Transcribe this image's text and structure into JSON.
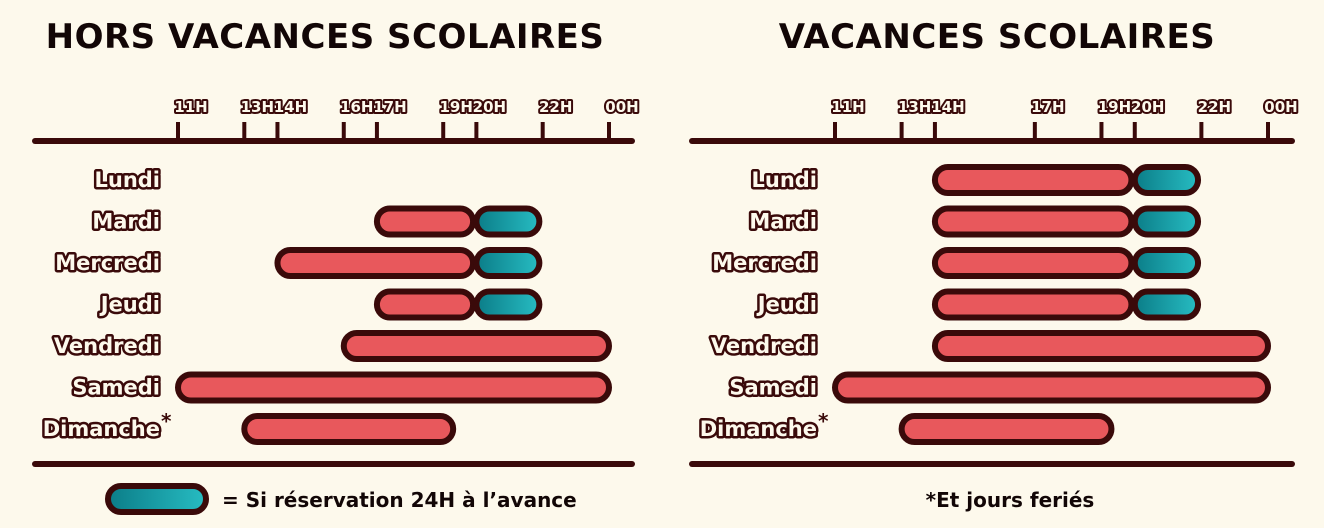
{
  "colors": {
    "outline": "#3a0a0a",
    "bar": "#e8585c",
    "reservation_bar_start": "#0b7d88",
    "reservation_bar_end": "#27bcc2",
    "background": "#fdf9ec"
  },
  "legend": {
    "label": "= Si réservation 24H à l’avance"
  },
  "footnote": "*Et jours feriés",
  "chart_data": [
    {
      "type": "bar",
      "orientation": "horizontal-range",
      "title": "HORS VACANCES SCOLAIRES",
      "x_unit": "hour",
      "xlim": [
        11,
        24
      ],
      "ticks": [
        {
          "value": 11,
          "label": "11H"
        },
        {
          "value": 13,
          "label": "13H"
        },
        {
          "value": 14,
          "label": "14H"
        },
        {
          "value": 16,
          "label": "16H"
        },
        {
          "value": 17,
          "label": "17H"
        },
        {
          "value": 19,
          "label": "19H"
        },
        {
          "value": 20,
          "label": "20H"
        },
        {
          "value": 22,
          "label": "22H"
        },
        {
          "value": 24,
          "label": "00H"
        }
      ],
      "days": [
        {
          "label": "Lundi",
          "star": false,
          "ranges": []
        },
        {
          "label": "Mardi",
          "star": false,
          "ranges": [
            {
              "start": 17,
              "end": 19.9,
              "reservation": false
            },
            {
              "start": 20,
              "end": 21.9,
              "reservation": true
            }
          ]
        },
        {
          "label": "Mercredi",
          "star": false,
          "ranges": [
            {
              "start": 14,
              "end": 19.9,
              "reservation": false
            },
            {
              "start": 20,
              "end": 21.9,
              "reservation": true
            }
          ]
        },
        {
          "label": "Jeudi",
          "star": false,
          "ranges": [
            {
              "start": 17,
              "end": 19.9,
              "reservation": false
            },
            {
              "start": 20,
              "end": 21.9,
              "reservation": true
            }
          ]
        },
        {
          "label": "Vendredi",
          "star": false,
          "ranges": [
            {
              "start": 16,
              "end": 24,
              "reservation": false
            }
          ]
        },
        {
          "label": "Samedi",
          "star": false,
          "ranges": [
            {
              "start": 11,
              "end": 24,
              "reservation": false
            }
          ]
        },
        {
          "label": "Dimanche",
          "star": true,
          "ranges": [
            {
              "start": 13,
              "end": 19.3,
              "reservation": false
            }
          ]
        }
      ]
    },
    {
      "type": "bar",
      "orientation": "horizontal-range",
      "title": "VACANCES SCOLAIRES",
      "x_unit": "hour",
      "xlim": [
        11,
        24
      ],
      "ticks": [
        {
          "value": 11,
          "label": "11H"
        },
        {
          "value": 13,
          "label": "13H"
        },
        {
          "value": 14,
          "label": "14H"
        },
        {
          "value": 17,
          "label": "17H"
        },
        {
          "value": 19,
          "label": "19H"
        },
        {
          "value": 20,
          "label": "20H"
        },
        {
          "value": 22,
          "label": "22H"
        },
        {
          "value": 24,
          "label": "00H"
        }
      ],
      "days": [
        {
          "label": "Lundi",
          "star": false,
          "ranges": [
            {
              "start": 14,
              "end": 19.9,
              "reservation": false
            },
            {
              "start": 20,
              "end": 21.9,
              "reservation": true
            }
          ]
        },
        {
          "label": "Mardi",
          "star": false,
          "ranges": [
            {
              "start": 14,
              "end": 19.9,
              "reservation": false
            },
            {
              "start": 20,
              "end": 21.9,
              "reservation": true
            }
          ]
        },
        {
          "label": "Mercredi",
          "star": false,
          "ranges": [
            {
              "start": 14,
              "end": 19.9,
              "reservation": false
            },
            {
              "start": 20,
              "end": 21.9,
              "reservation": true
            }
          ]
        },
        {
          "label": "Jeudi",
          "star": false,
          "ranges": [
            {
              "start": 14,
              "end": 19.9,
              "reservation": false
            },
            {
              "start": 20,
              "end": 21.9,
              "reservation": true
            }
          ]
        },
        {
          "label": "Vendredi",
          "star": false,
          "ranges": [
            {
              "start": 14,
              "end": 24,
              "reservation": false
            }
          ]
        },
        {
          "label": "Samedi",
          "star": false,
          "ranges": [
            {
              "start": 11,
              "end": 24,
              "reservation": false
            }
          ]
        },
        {
          "label": "Dimanche",
          "star": true,
          "ranges": [
            {
              "start": 13,
              "end": 19.3,
              "reservation": false
            }
          ]
        }
      ]
    }
  ]
}
